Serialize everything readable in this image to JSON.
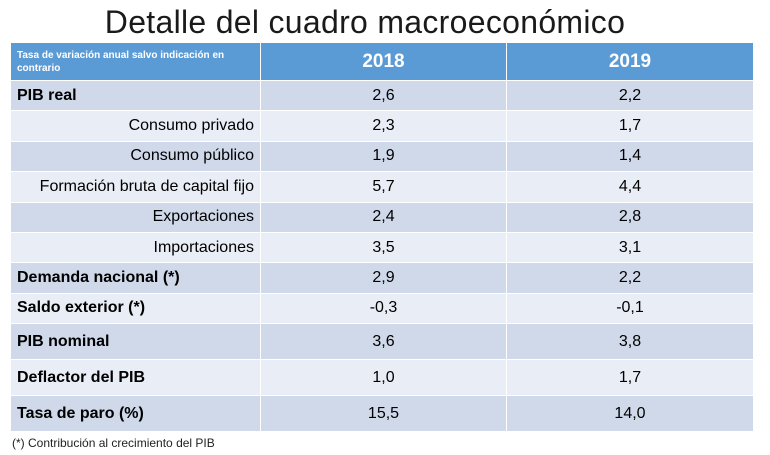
{
  "title": "Detalle del cuadro macroeconómico",
  "chart_data": {
    "type": "table",
    "header_note": "Tasa de variación anual salvo indicación en contrario",
    "columns": [
      "2018",
      "2019"
    ],
    "rows": [
      {
        "label": "PIB real",
        "style": "main",
        "values": [
          "2,6",
          "2,2"
        ]
      },
      {
        "label": "Consumo privado",
        "style": "sub",
        "values": [
          "2,3",
          "1,7"
        ]
      },
      {
        "label": "Consumo público",
        "style": "sub",
        "values": [
          "1,9",
          "1,4"
        ]
      },
      {
        "label": "Formación bruta de capital fijo",
        "style": "sub",
        "values": [
          "5,7",
          "4,4"
        ]
      },
      {
        "label": "Exportaciones",
        "style": "sub",
        "values": [
          "2,4",
          "2,8"
        ]
      },
      {
        "label": "Importaciones",
        "style": "sub",
        "values": [
          "3,5",
          "3,1"
        ]
      },
      {
        "label": "Demanda nacional (*)",
        "style": "main",
        "values": [
          "2,9",
          "2,2"
        ]
      },
      {
        "label": "Saldo exterior (*)",
        "style": "main",
        "values": [
          "-0,3",
          "-0,1"
        ]
      },
      {
        "label": "PIB nominal",
        "style": "main",
        "values": [
          "3,6",
          "3,8"
        ]
      },
      {
        "label": "Deflactor del PIB",
        "style": "main",
        "values": [
          "1,0",
          "1,7"
        ]
      },
      {
        "label": "Tasa de paro (%)",
        "style": "main",
        "values": [
          "15,5",
          "14,0"
        ]
      }
    ]
  },
  "colors": {
    "header_bg": "#5b9bd5",
    "row_dark": "#cfd9ea",
    "row_light": "#e9edf5"
  },
  "footnote": "(*) Contribución al crecimiento del PIB"
}
